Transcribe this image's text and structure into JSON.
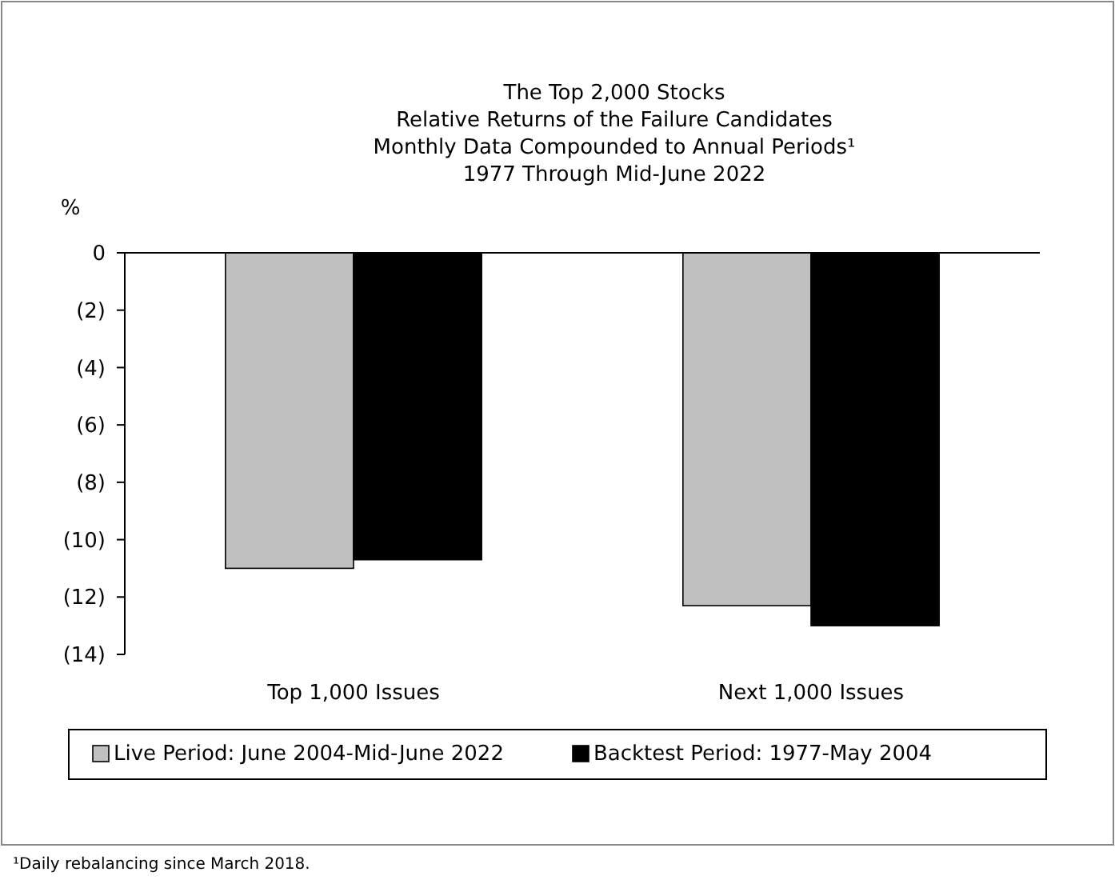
{
  "chart_data": {
    "type": "bar",
    "title": "The Top 2,000 Stocks\nRelative Returns of the Failure Candidates\nMonthly Data Compounded to Annual Periods¹\n1977 Through Mid-June 2022",
    "ylabel": "%",
    "categories": [
      "Top 1,000 Issues",
      "Next 1,000 Issues"
    ],
    "series": [
      {
        "name": "Live Period: June 2004-Mid-June 2022",
        "color": "#c0c0c0",
        "values": [
          -11.0,
          -12.3
        ]
      },
      {
        "name": "Backtest Period: 1977-May 2004",
        "color": "#000000",
        "values": [
          -10.7,
          -13.0
        ]
      }
    ],
    "ylim": [
      -14,
      0
    ],
    "yticks": [
      {
        "value": -14,
        "label": "(14)"
      },
      {
        "value": -12,
        "label": "(12)"
      },
      {
        "value": -10,
        "label": "(10)"
      },
      {
        "value": -8,
        "label": "(8)"
      },
      {
        "value": -6,
        "label": "(6)"
      },
      {
        "value": -4,
        "label": "(4)"
      },
      {
        "value": -2,
        "label": "(2)"
      },
      0
    ],
    "legend": "bottom",
    "grid": false,
    "annotations": [
      "¹Daily rebalancing since March 2018."
    ]
  }
}
